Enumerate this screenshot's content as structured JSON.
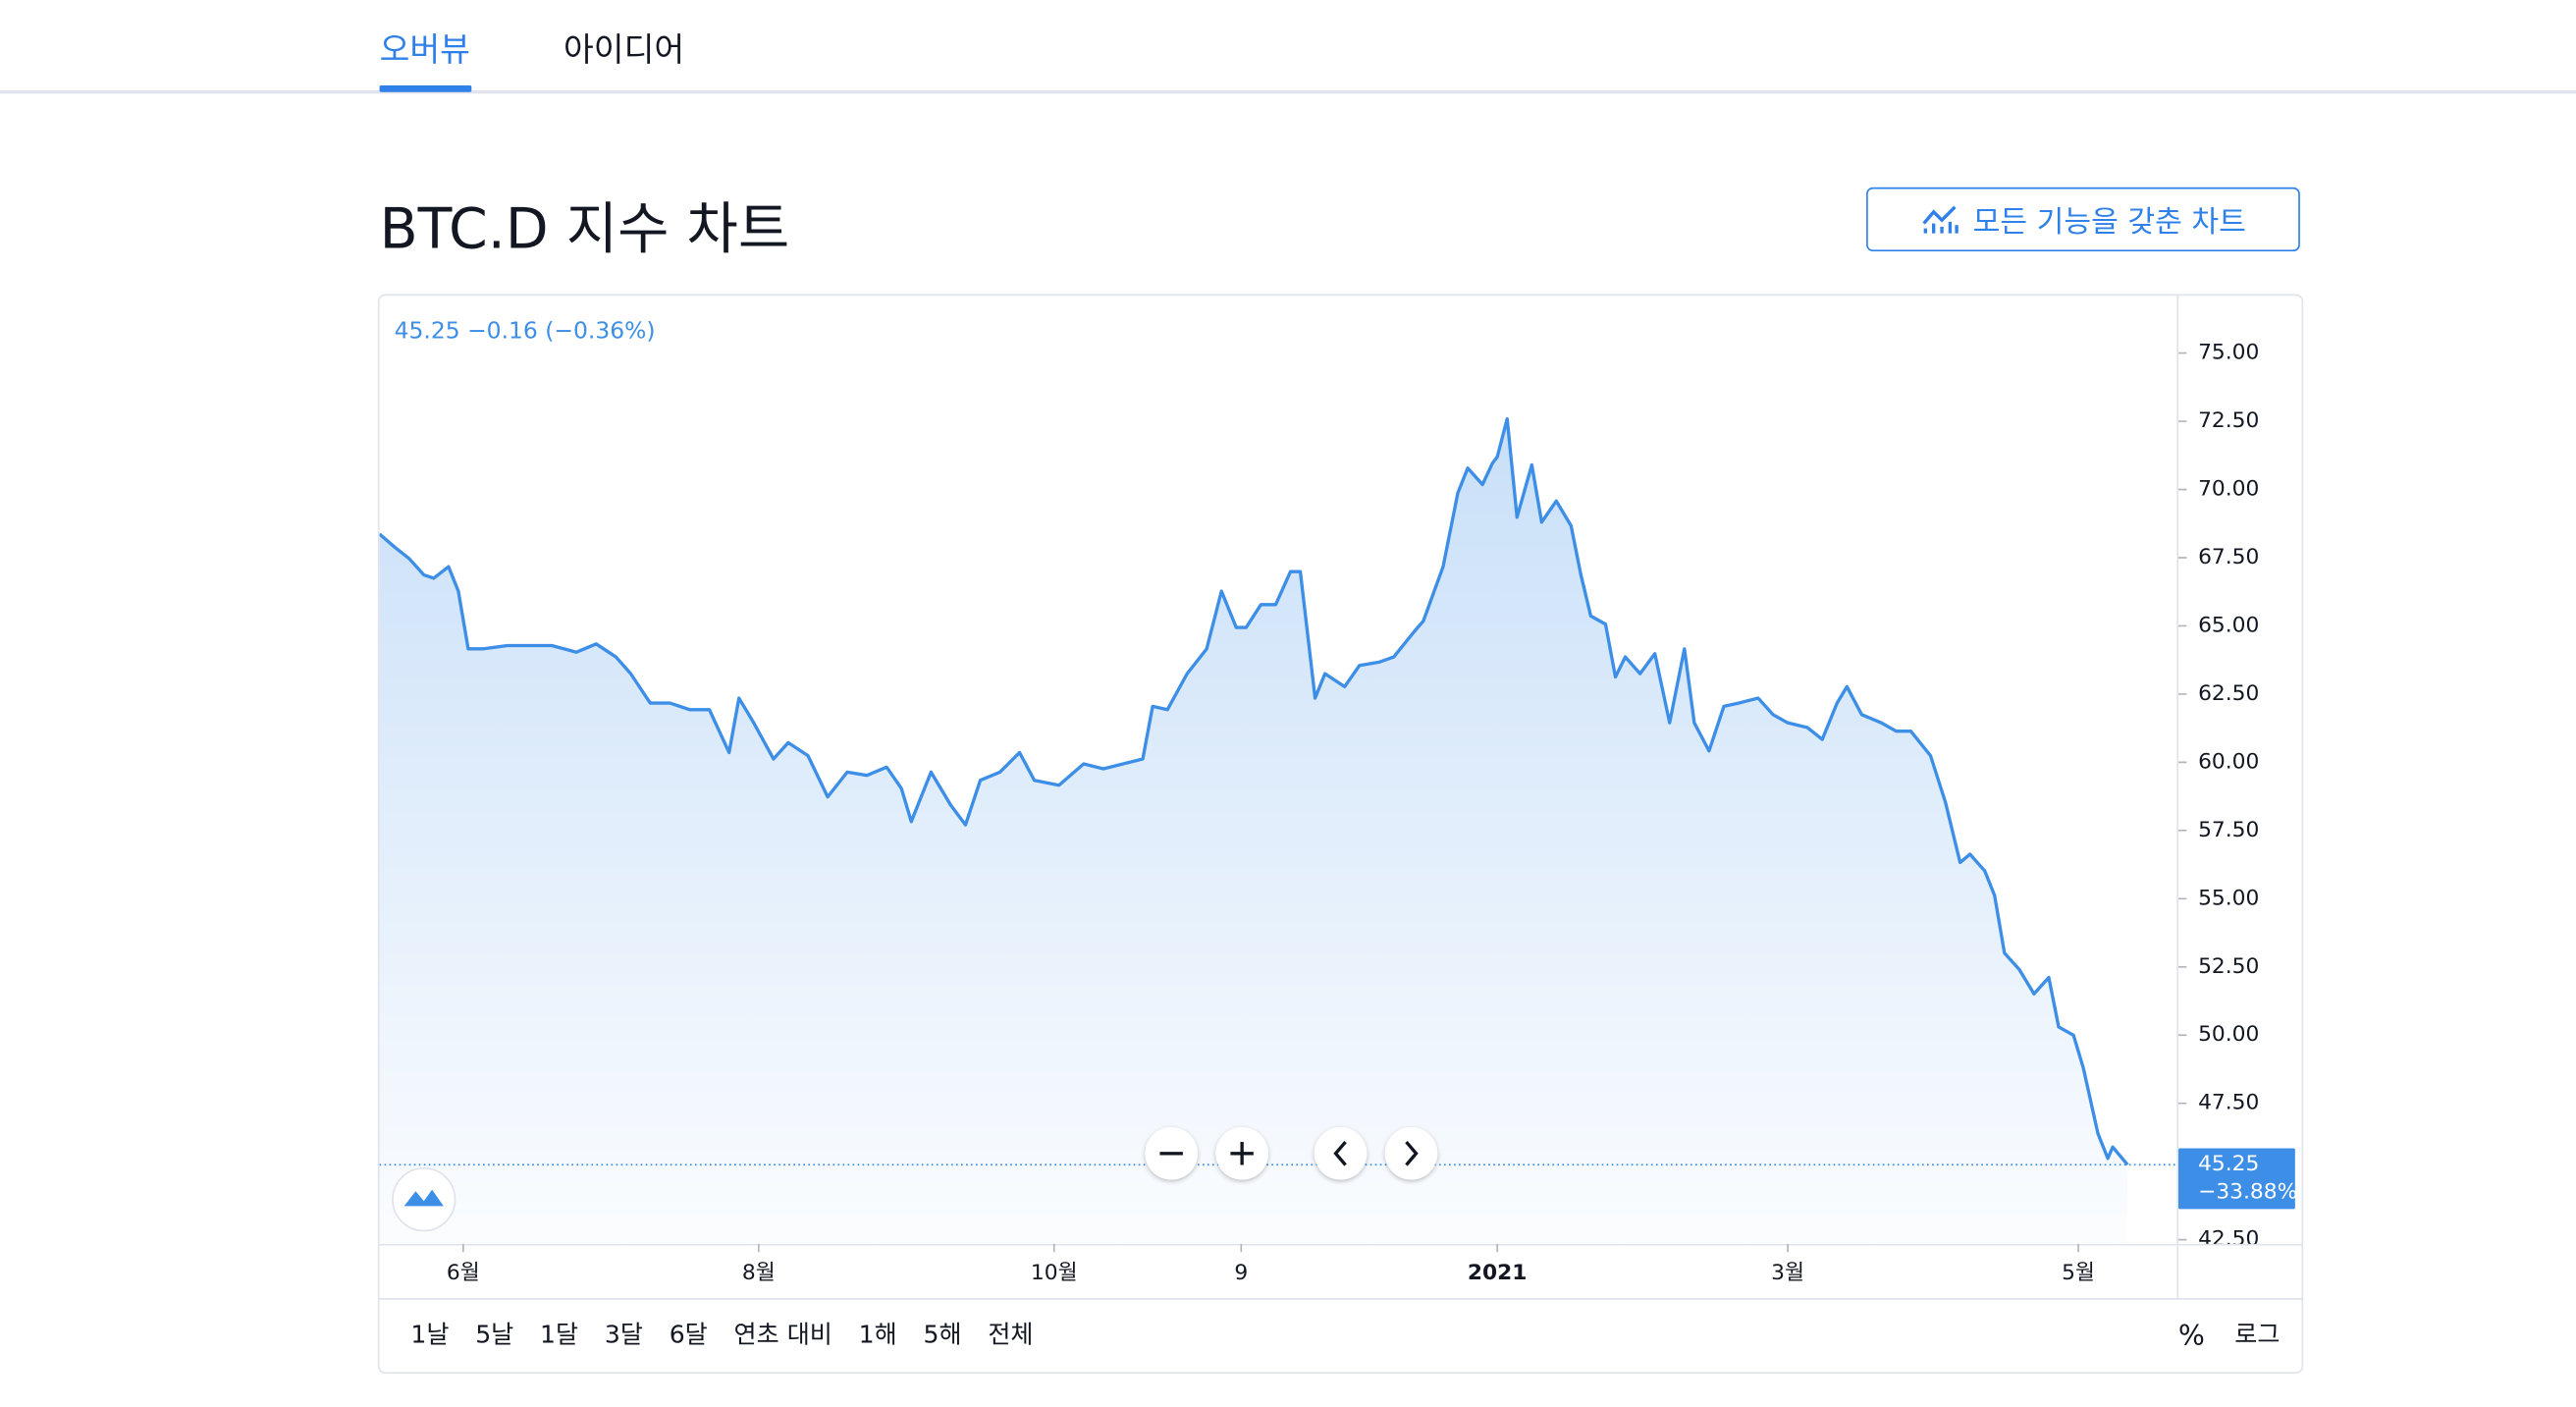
{
  "tabs": [
    "오버뷰",
    "아이디어"
  ],
  "heading": "BTC.D 지수 차트",
  "button": "모든 기능을 갖춘 차트",
  "chart_data": {
    "type": "line",
    "quote": "45.25 −0.16 (−0.36%)",
    "color": "#3d8ee6",
    "x": [
      0,
      3,
      6,
      9,
      11,
      14,
      16,
      18,
      21,
      26,
      30,
      35,
      40,
      44,
      48,
      51,
      55,
      59,
      63,
      67,
      71,
      73,
      76,
      80,
      83,
      87,
      91,
      95,
      99,
      103,
      106,
      108,
      112,
      116,
      119,
      122,
      126,
      130,
      133,
      138,
      143,
      147,
      151,
      155,
      157,
      160,
      164,
      168,
      171,
      174,
      176,
      179,
      182,
      185,
      187,
      190,
      192,
      196,
      199,
      203,
      206,
      210,
      212,
      216,
      219,
      221,
      224,
      226,
      227,
      229,
      231,
      234,
      236,
      239,
      242,
      244,
      246,
      249,
      251,
      253,
      256,
      259,
      262,
      265,
      267,
      270,
      273,
      276,
      280,
      283,
      286,
      290,
      293,
      296,
      298,
      301,
      305,
      308,
      311,
      315,
      318,
      321,
      323,
      326,
      328,
      330,
      333,
      336,
      339,
      341,
      344,
      346,
      349,
      351,
      352,
      355
    ],
    "values": [
      68.37,
      67.9,
      67.47,
      66.87,
      66.75,
      67.17,
      66.27,
      64.16,
      64.16,
      64.28,
      64.28,
      64.28,
      64.04,
      64.34,
      63.86,
      63.25,
      62.17,
      62.17,
      61.93,
      61.93,
      60.36,
      62.35,
      61.45,
      60.12,
      60.72,
      60.24,
      58.73,
      59.64,
      59.52,
      59.82,
      59.04,
      57.83,
      59.64,
      58.43,
      57.71,
      59.34,
      59.64,
      60.36,
      59.34,
      59.16,
      59.94,
      59.76,
      59.94,
      60.12,
      62.05,
      61.93,
      63.25,
      64.16,
      66.27,
      64.94,
      64.94,
      65.78,
      65.78,
      66.99,
      66.99,
      62.35,
      63.25,
      62.77,
      63.55,
      63.67,
      63.86,
      64.76,
      65.18,
      67.17,
      69.88,
      70.78,
      70.18,
      70.96,
      71.2,
      72.59,
      68.98,
      70.9,
      68.8,
      69.58,
      68.67,
      66.87,
      65.36,
      65.06,
      63.13,
      63.86,
      63.25,
      63.98,
      61.45,
      64.16,
      61.45,
      60.42,
      62.05,
      62.17,
      62.35,
      61.75,
      61.45,
      61.27,
      60.84,
      62.17,
      62.77,
      61.75,
      61.45,
      61.14,
      61.14,
      60.24,
      58.55,
      56.33,
      56.63,
      56.02,
      55.12,
      53.01,
      52.41,
      51.51,
      52.11,
      50.3,
      50.0,
      48.8,
      46.39,
      45.48,
      45.9,
      45.25
    ],
    "xlim": [
      0,
      365
    ],
    "ylim": [
      42.35,
      77.1
    ],
    "xticks": [
      {
        "value": 17,
        "label": "6월"
      },
      {
        "value": 77,
        "label": "8월"
      },
      {
        "value": 137,
        "label": "10월"
      },
      {
        "value": 175,
        "label": "9"
      },
      {
        "value": 227,
        "label": "2021"
      },
      {
        "value": 286,
        "label": "3월"
      },
      {
        "value": 345,
        "label": "5월"
      }
    ],
    "yticks": [
      {
        "value": 42.5,
        "label": "42.50"
      },
      {
        "value": 45,
        "label": "45.00"
      },
      {
        "value": 47.5,
        "label": "47.50"
      },
      {
        "value": 50,
        "label": "50.00"
      },
      {
        "value": 52.5,
        "label": "52.50"
      },
      {
        "value": 55,
        "label": "55.00"
      },
      {
        "value": 57.5,
        "label": "57.50"
      },
      {
        "value": 60,
        "label": "60.00"
      },
      {
        "value": 62.5,
        "label": "62.50"
      },
      {
        "value": 65,
        "label": "65.00"
      },
      {
        "value": 67.5,
        "label": "67.50"
      },
      {
        "value": 70,
        "label": "70.00"
      },
      {
        "value": 72.5,
        "label": "72.50"
      },
      {
        "value": 75,
        "label": "75.00"
      }
    ],
    "last_price_label": {
      "price": "45.25",
      "change": "−33.88%"
    },
    "ranges": [
      "1날",
      "5날",
      "1달",
      "3달",
      "6달",
      "연초 대비",
      "1해",
      "5해",
      "전체"
    ],
    "scale_buttons": [
      "%",
      "로그"
    ]
  }
}
